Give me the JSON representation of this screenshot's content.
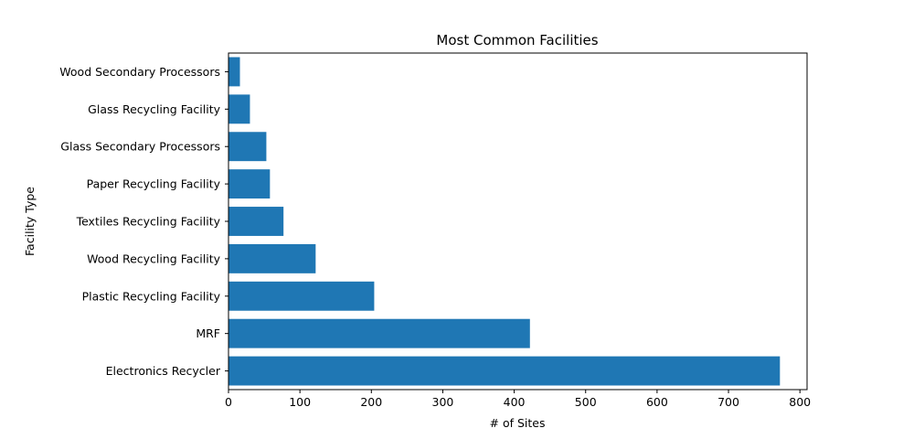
{
  "chart_data": {
    "type": "bar",
    "orientation": "horizontal",
    "title": "Most Common Facilities",
    "xlabel": "# of Sites",
    "ylabel": "Facility Type",
    "categories": [
      "Electronics Recycler",
      "MRF",
      "Plastic Recycling Facility",
      "Wood Recycling Facility",
      "Textiles Recycling Facility",
      "Paper Recycling Facility",
      "Glass Secondary Processors",
      "Glass Recycling Facility",
      "Wood Secondary Processors"
    ],
    "values": [
      772,
      422,
      204,
      122,
      77,
      58,
      53,
      30,
      16
    ],
    "xlim": [
      0,
      810
    ],
    "xticks": [
      0,
      100,
      200,
      300,
      400,
      500,
      600,
      700,
      800
    ],
    "bar_color": "#1f77b4",
    "grid": false,
    "legend": "none"
  }
}
